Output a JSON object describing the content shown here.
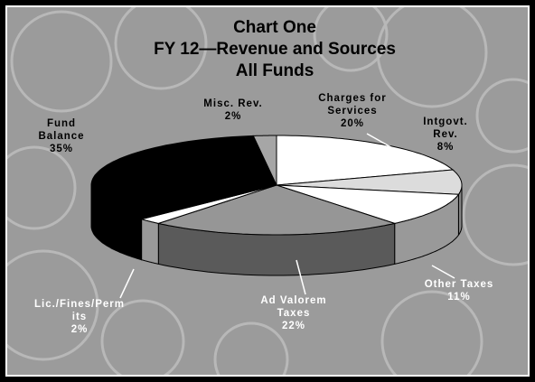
{
  "chart_data": {
    "type": "pie",
    "title": [
      "Chart One",
      "FY 12—Revenue and Sources",
      "All Funds"
    ],
    "categories": [
      "Charges for Services",
      "Intgovt. Rev.",
      "Other Taxes",
      "Ad Valorem Taxes",
      "Lic./Fines/Permits",
      "Fund Balance",
      "Misc. Rev."
    ],
    "values": [
      20,
      8,
      11,
      22,
      2,
      35,
      2
    ],
    "value_labels": [
      "20%",
      "8%",
      "11%",
      "22%",
      "2%",
      "35%",
      "2%"
    ],
    "colors": [
      "#ffffff",
      "#dcdcdc",
      "#ffffff",
      "#969696",
      "#ffffff",
      "#000000",
      "#a6a6a6"
    ]
  }
}
